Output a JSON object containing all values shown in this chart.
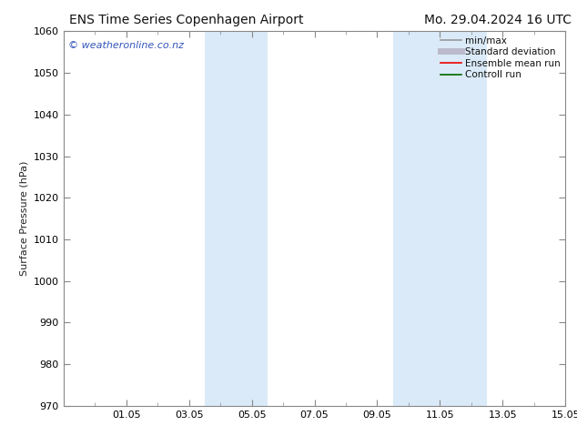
{
  "title_left": "ENS Time Series Copenhagen Airport",
  "title_right": "Mo. 29.04.2024 16 UTC",
  "ylabel": "Surface Pressure (hPa)",
  "ylim": [
    970,
    1060
  ],
  "yticks": [
    970,
    980,
    990,
    1000,
    1010,
    1020,
    1030,
    1040,
    1050,
    1060
  ],
  "xtick_labels": [
    "01.05",
    "03.05",
    "05.05",
    "07.05",
    "09.05",
    "11.05",
    "13.05",
    "15.05"
  ],
  "xtick_positions": [
    2,
    4,
    6,
    8,
    10,
    12,
    14,
    16
  ],
  "xlim": [
    0,
    16
  ],
  "shaded_bands": [
    {
      "xmin": 4.5,
      "xmax": 6.5
    },
    {
      "xmin": 10.5,
      "xmax": 13.5
    }
  ],
  "shade_color": "#daeaf8",
  "watermark_text": "© weatheronline.co.nz",
  "watermark_color": "#3355bb",
  "legend_items": [
    {
      "label": "min/max",
      "color": "#999999",
      "lw": 1.2
    },
    {
      "label": "Standard deviation",
      "color": "#bbbbcc",
      "lw": 5
    },
    {
      "label": "Ensemble mean run",
      "color": "#ee0000",
      "lw": 1.2
    },
    {
      "label": "Controll run",
      "color": "#006600",
      "lw": 1.2
    }
  ],
  "bg_color": "#ffffff",
  "spine_color": "#888888",
  "title_fontsize": 10,
  "axis_label_fontsize": 8,
  "tick_fontsize": 8,
  "watermark_fontsize": 8,
  "legend_fontsize": 7.5
}
